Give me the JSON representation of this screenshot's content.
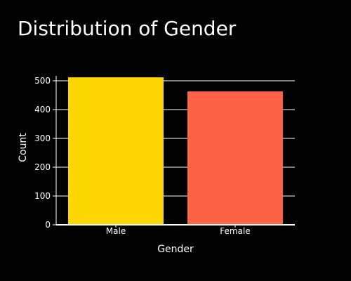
{
  "chart_data": {
    "type": "bar",
    "title": "Distribution of Gender",
    "xlabel": "Gender",
    "ylabel": "Count",
    "categories": [
      "Male",
      "Female"
    ],
    "values": [
      512,
      463
    ],
    "colors": [
      "#FFD700",
      "#FF6347"
    ],
    "ylim": [
      0,
      500
    ],
    "yticks": [
      0,
      100,
      200,
      300,
      400,
      500
    ],
    "grid": true,
    "legend": "none",
    "background": "#000000",
    "text_color": "#ffffff",
    "grid_color": "#ffffff"
  }
}
